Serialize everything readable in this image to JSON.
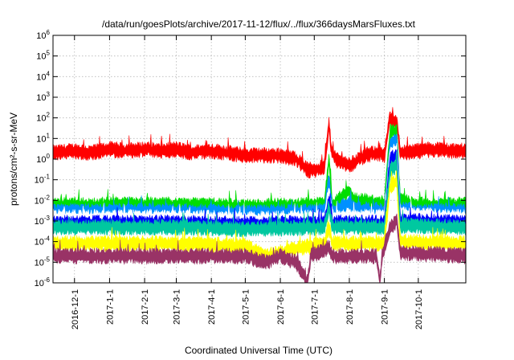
{
  "chart_data": {
    "type": "line",
    "title": "/data/run/goesPlots/archive/2017-11-12/flux/../flux/366daysMarsFluxes.txt",
    "xlabel": "Coordinated Universal Time (UTC)",
    "ylabel": "protons/cm²-s-sr-MeV",
    "yscale": "log",
    "ylim": [
      1e-06,
      1000000.0
    ],
    "xlim": [
      "2016-11-12",
      "2017-11-12"
    ],
    "grid": true,
    "y_ticks": [
      {
        "value": 1e-06,
        "base": "10",
        "exp": "-6"
      },
      {
        "value": 1e-05,
        "base": "10",
        "exp": "-5"
      },
      {
        "value": 0.0001,
        "base": "10",
        "exp": "-4"
      },
      {
        "value": 0.001,
        "base": "10",
        "exp": "-3"
      },
      {
        "value": 0.01,
        "base": "10",
        "exp": "-2"
      },
      {
        "value": 0.1,
        "base": "10",
        "exp": "-1"
      },
      {
        "value": 1,
        "base": "10",
        "exp": "0"
      },
      {
        "value": 10.0,
        "base": "10",
        "exp": "1"
      },
      {
        "value": 100.0,
        "base": "10",
        "exp": "2"
      },
      {
        "value": 1000.0,
        "base": "10",
        "exp": "3"
      },
      {
        "value": 10000.0,
        "base": "10",
        "exp": "4"
      },
      {
        "value": 100000.0,
        "base": "10",
        "exp": "5"
      },
      {
        "value": 1000000.0,
        "base": "10",
        "exp": "6"
      }
    ],
    "x_ticks": [
      "2016-12-1",
      "2017-1-1",
      "2017-2-1",
      "2017-3-1",
      "2017-4-1",
      "2017-5-1",
      "2017-6-1",
      "2017-7-1",
      "2017-8-1",
      "2017-9-1",
      "2017-10-1"
    ],
    "series": [
      {
        "color": "#ff0000",
        "points": [
          [
            "2016-11-12",
            2.0
          ],
          [
            "2016-12-01",
            2.5
          ],
          [
            "2016-12-15",
            2.0
          ],
          [
            "2017-01-01",
            3.0
          ],
          [
            "2017-01-15",
            2.5
          ],
          [
            "2017-02-01",
            3.0
          ],
          [
            "2017-02-15",
            2.5
          ],
          [
            "2017-03-01",
            3.0
          ],
          [
            "2017-03-15",
            2.0
          ],
          [
            "2017-04-01",
            2.5
          ],
          [
            "2017-04-15",
            2.0
          ],
          [
            "2017-05-01",
            1.5
          ],
          [
            "2017-05-20",
            1.5
          ],
          [
            "2017-06-01",
            1.5
          ],
          [
            "2017-06-15",
            1.0
          ],
          [
            "2017-06-25",
            0.3
          ],
          [
            "2017-07-01",
            0.3
          ],
          [
            "2017-07-10",
            0.4
          ],
          [
            "2017-07-14",
            50
          ],
          [
            "2017-07-16",
            3
          ],
          [
            "2017-07-20",
            1.0
          ],
          [
            "2017-08-01",
            0.5
          ],
          [
            "2017-08-15",
            1.5
          ],
          [
            "2017-08-25",
            2.0
          ],
          [
            "2017-09-01",
            1.5
          ],
          [
            "2017-09-06",
            100
          ],
          [
            "2017-09-09",
            60
          ],
          [
            "2017-09-12",
            80
          ],
          [
            "2017-09-15",
            2
          ],
          [
            "2017-10-01",
            2.5
          ],
          [
            "2017-10-15",
            3.0
          ],
          [
            "2017-11-01",
            2.5
          ],
          [
            "2017-11-12",
            2.5
          ]
        ]
      },
      {
        "color": "#00dd00",
        "points": [
          [
            "2016-11-12",
            0.006
          ],
          [
            "2017-03-01",
            0.006
          ],
          [
            "2017-05-01",
            0.005
          ],
          [
            "2017-07-10",
            0.006
          ],
          [
            "2017-07-14",
            1.0
          ],
          [
            "2017-07-17",
            0.006
          ],
          [
            "2017-08-01",
            0.03
          ],
          [
            "2017-08-05",
            0.01
          ],
          [
            "2017-09-01",
            0.007
          ],
          [
            "2017-09-06",
            20
          ],
          [
            "2017-09-12",
            25
          ],
          [
            "2017-09-15",
            0.01
          ],
          [
            "2017-10-01",
            0.006
          ],
          [
            "2017-11-12",
            0.006
          ]
        ]
      },
      {
        "color": "#0090ff",
        "points": [
          [
            "2016-11-12",
            0.003
          ],
          [
            "2017-03-01",
            0.003
          ],
          [
            "2017-05-01",
            0.0025
          ],
          [
            "2017-07-10",
            0.003
          ],
          [
            "2017-07-14",
            0.1
          ],
          [
            "2017-07-17",
            0.003
          ],
          [
            "2017-08-01",
            0.008
          ],
          [
            "2017-08-05",
            0.004
          ],
          [
            "2017-09-01",
            0.003
          ],
          [
            "2017-09-06",
            5
          ],
          [
            "2017-09-12",
            8
          ],
          [
            "2017-09-15",
            0.004
          ],
          [
            "2017-10-01",
            0.003
          ],
          [
            "2017-11-12",
            0.003
          ]
        ]
      },
      {
        "color": "#ffffff",
        "points": [
          [
            "2016-11-12",
            0.0015
          ],
          [
            "2017-03-01",
            0.0015
          ],
          [
            "2017-05-01",
            0.0012
          ],
          [
            "2017-07-10",
            0.0015
          ],
          [
            "2017-07-14",
            0.03
          ],
          [
            "2017-07-17",
            0.0015
          ],
          [
            "2017-09-01",
            0.0015
          ],
          [
            "2017-09-06",
            2
          ],
          [
            "2017-09-12",
            3
          ],
          [
            "2017-09-15",
            0.002
          ],
          [
            "2017-11-12",
            0.0015
          ]
        ]
      },
      {
        "color": "#0000ff",
        "points": [
          [
            "2016-11-12",
            0.0008
          ],
          [
            "2017-03-01",
            0.0008
          ],
          [
            "2017-05-01",
            0.0007
          ],
          [
            "2017-07-10",
            0.0008
          ],
          [
            "2017-07-14",
            0.01
          ],
          [
            "2017-07-17",
            0.0008
          ],
          [
            "2017-09-01",
            0.0008
          ],
          [
            "2017-09-06",
            1
          ],
          [
            "2017-09-12",
            1.5
          ],
          [
            "2017-09-15",
            0.001
          ],
          [
            "2017-11-12",
            0.0008
          ]
        ]
      },
      {
        "color": "#00c8a0",
        "points": [
          [
            "2016-11-12",
            0.0005
          ],
          [
            "2017-03-01",
            0.0005
          ],
          [
            "2017-05-01",
            0.0004
          ],
          [
            "2017-07-10",
            0.0005
          ],
          [
            "2017-07-14",
            0.005
          ],
          [
            "2017-07-17",
            0.0005
          ],
          [
            "2017-09-01",
            0.0005
          ],
          [
            "2017-09-06",
            0.3
          ],
          [
            "2017-09-12",
            0.5
          ],
          [
            "2017-09-15",
            0.0006
          ],
          [
            "2017-11-12",
            0.0005
          ]
        ]
      },
      {
        "color": "#ffff00",
        "points": [
          [
            "2016-11-12",
            8e-05
          ],
          [
            "2017-03-01",
            8e-05
          ],
          [
            "2017-05-01",
            6e-05
          ],
          [
            "2017-05-20",
            2e-05
          ],
          [
            "2017-06-10",
            4e-05
          ],
          [
            "2017-07-10",
            8e-05
          ],
          [
            "2017-07-14",
            0.0005
          ],
          [
            "2017-07-17",
            8e-05
          ],
          [
            "2017-09-01",
            8e-05
          ],
          [
            "2017-09-06",
            0.05
          ],
          [
            "2017-09-12",
            0.08
          ],
          [
            "2017-09-15",
            0.0001
          ],
          [
            "2017-11-12",
            8e-05
          ]
        ]
      },
      {
        "color": "#993366",
        "points": [
          [
            "2016-11-12",
            2e-05
          ],
          [
            "2017-01-01",
            2e-05
          ],
          [
            "2017-03-01",
            2e-05
          ],
          [
            "2017-05-01",
            2e-05
          ],
          [
            "2017-05-20",
            1e-05
          ],
          [
            "2017-06-01",
            2e-05
          ],
          [
            "2017-06-15",
            1e-05
          ],
          [
            "2017-06-25",
            1e-06
          ],
          [
            "2017-06-28",
            2e-05
          ],
          [
            "2017-07-14",
            5e-05
          ],
          [
            "2017-07-17",
            2e-05
          ],
          [
            "2017-08-25",
            2e-05
          ],
          [
            "2017-08-28",
            1e-06
          ],
          [
            "2017-08-30",
            2e-05
          ],
          [
            "2017-09-06",
            0.0005
          ],
          [
            "2017-09-12",
            0.001
          ],
          [
            "2017-09-15",
            3e-05
          ],
          [
            "2017-11-12",
            2e-05
          ]
        ]
      }
    ]
  }
}
